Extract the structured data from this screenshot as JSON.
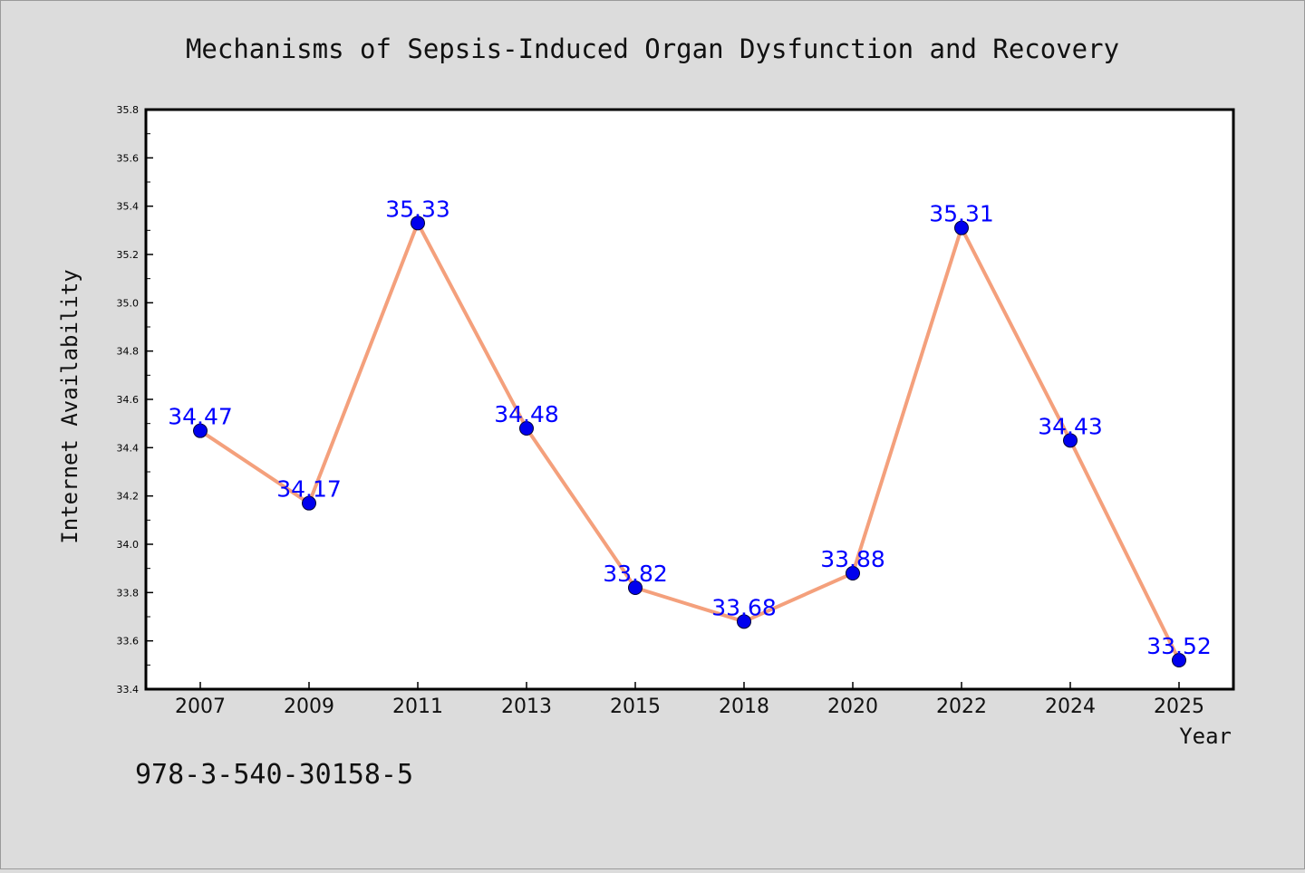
{
  "chart_data": {
    "type": "line",
    "title": "Mechanisms of Sepsis-Induced Organ Dysfunction and Recovery",
    "xlabel": "Year",
    "ylabel": "Internet Availability",
    "categories": [
      "2007",
      "2009",
      "2011",
      "2013",
      "2015",
      "2018",
      "2020",
      "2022",
      "2024",
      "2025"
    ],
    "series": [
      {
        "values": [
          34.47,
          34.17,
          35.33,
          34.48,
          33.82,
          33.68,
          33.88,
          35.31,
          34.43,
          33.52
        ]
      }
    ],
    "data_labels": [
      "34.47",
      "34.17",
      "35.33",
      "34.48",
      "33.82",
      "33.68",
      "33.88",
      "35.31",
      "34.43",
      "33.52"
    ],
    "ylim": [
      33.4,
      35.8
    ],
    "yticks": [
      "33.4",
      "33.6",
      "33.8",
      "34.0",
      "34.2",
      "34.4",
      "34.6",
      "34.8",
      "35.0",
      "35.2",
      "35.4",
      "35.6",
      "35.8"
    ],
    "grid": false,
    "legend": "none",
    "colors": {
      "line": "#f4a07c",
      "marker": "#0000ee",
      "data_label": "#0000ff",
      "background": "#dcdcdc",
      "plot_background": "#ffffff"
    }
  },
  "footer_text": "978-3-540-30158-5"
}
